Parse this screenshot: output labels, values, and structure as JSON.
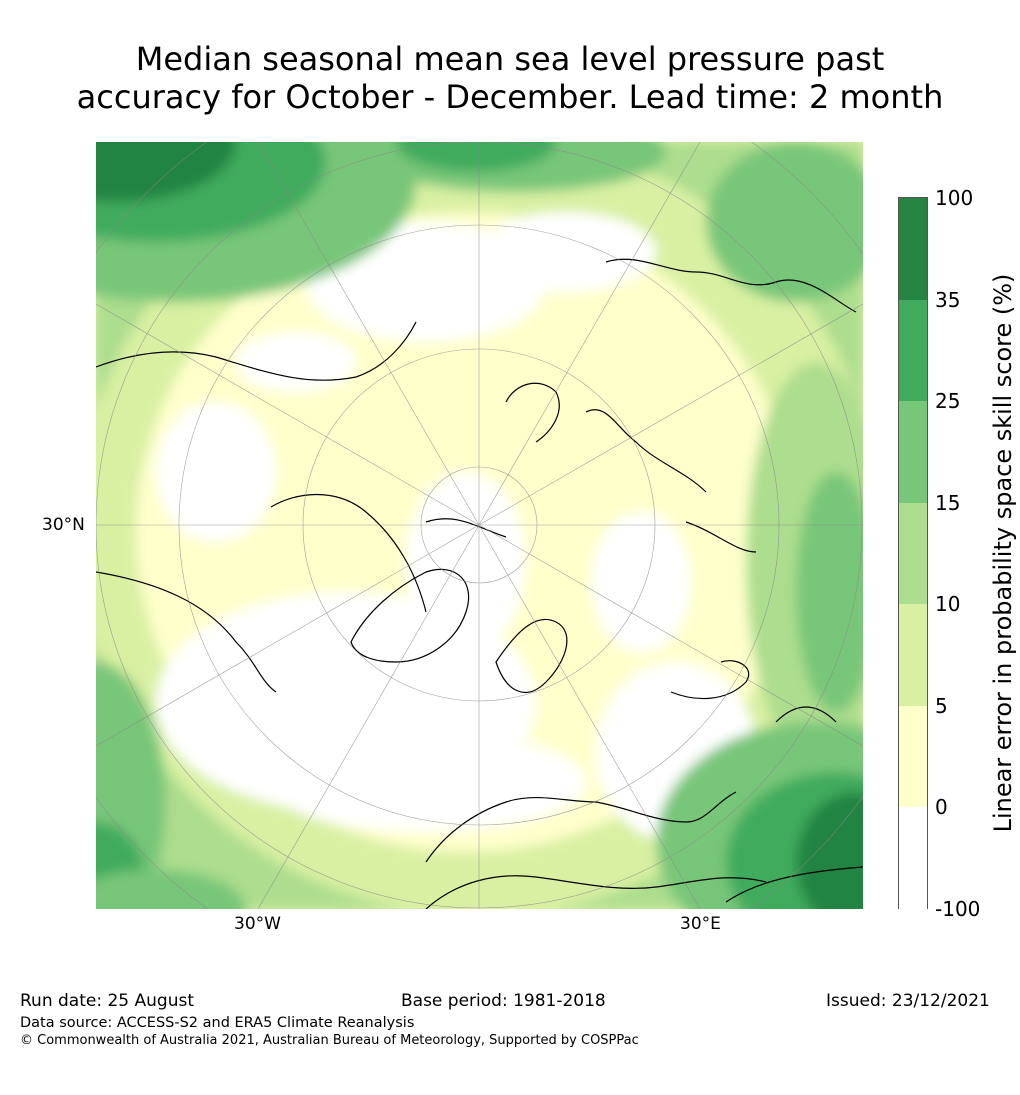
{
  "title": {
    "line1": "Median seasonal mean sea level pressure past",
    "line2": "accuracy for October - December. Lead time: 2 month"
  },
  "map": {
    "lon_labels": [
      "30°W",
      "30°E"
    ],
    "lat_label": "30°N"
  },
  "legend": {
    "label": "Linear error in probability space skill score (%)",
    "ticks": [
      "-100",
      "0",
      "5",
      "10",
      "15",
      "25",
      "35",
      "100"
    ],
    "colors": [
      "#ffffff",
      "#ffffcc",
      "#d9f0a3",
      "#addd8e",
      "#78c679",
      "#41ab5d",
      "#238443"
    ]
  },
  "footer": {
    "run_date": "Run date: 25 August",
    "base_period": "Base period: 1981-2018",
    "issued": "Issued: 23/12/2021",
    "data_source": "Data source: ACCESS-S2 and ERA5 Climate Reanalysis",
    "copyright": "© Commonwealth of Australia 2021, Australian Bureau of Meteorology, Supported by COSPPac"
  }
}
